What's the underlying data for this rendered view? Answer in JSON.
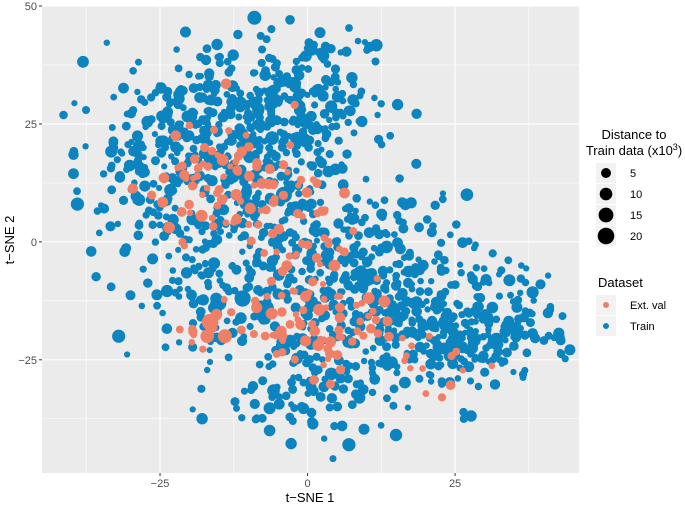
{
  "chart_data": {
    "type": "scatter",
    "xlabel": "t−SNE 1",
    "ylabel": "t−SNE 2",
    "xlim": [
      -45,
      46
    ],
    "ylim": [
      -49,
      50
    ],
    "x_ticks": [
      -25,
      0,
      25
    ],
    "x_tick_labels": [
      "−25",
      "0",
      "25"
    ],
    "y_ticks": [
      -25,
      0,
      25,
      50
    ],
    "y_tick_labels": [
      "−25",
      "0",
      "25",
      "50"
    ],
    "grid": true,
    "panel_background": "#ebebeb",
    "legend_placement": "right",
    "size_legend": {
      "title_line1": "Distance to",
      "title_line2": "Train data (x10",
      "title_sup": "3",
      "title_close": ")",
      "labels": [
        "5",
        "10",
        "15",
        "20"
      ],
      "values": [
        5,
        10,
        15,
        20
      ]
    },
    "color_legend": {
      "title": "Dataset",
      "labels": [
        "Ext. val",
        "Train"
      ],
      "colors": [
        "#f07f67",
        "#0c84bf"
      ]
    },
    "series": [
      {
        "name": "Train",
        "color": "#0c84bf",
        "clusters": [
          {
            "cx": -15,
            "cy": 22,
            "sx": 9,
            "sy": 9,
            "n": 260
          },
          {
            "cx": -3,
            "cy": 30,
            "sx": 9,
            "sy": 8,
            "n": 220
          },
          {
            "cx": -28,
            "cy": 15,
            "sx": 6,
            "sy": 9,
            "n": 90
          },
          {
            "cx": -8,
            "cy": 5,
            "sx": 9,
            "sy": 7,
            "n": 140
          },
          {
            "cx": 3,
            "cy": -10,
            "sx": 8,
            "sy": 8,
            "n": 160
          },
          {
            "cx": 0,
            "cy": -30,
            "sx": 8,
            "sy": 6,
            "n": 110
          },
          {
            "cx": 18,
            "cy": -18,
            "sx": 8,
            "sy": 7,
            "n": 200
          },
          {
            "cx": 32,
            "cy": -18,
            "sx": 7,
            "sy": 7,
            "n": 150
          },
          {
            "cx": 15,
            "cy": -2,
            "sx": 6,
            "sy": 6,
            "n": 70
          },
          {
            "cx": -18,
            "cy": -12,
            "sx": 6,
            "sy": 6,
            "n": 70
          }
        ],
        "big_points": [
          {
            "x": -9,
            "y": 47.5,
            "size": 13
          },
          {
            "x": -11,
            "y": -12,
            "size": 19
          },
          {
            "x": -7,
            "y": -14,
            "size": 16
          },
          {
            "x": -15,
            "y": -13,
            "size": 15
          },
          {
            "x": -4,
            "y": 10,
            "size": 18
          },
          {
            "x": -2,
            "y": 7,
            "size": 16
          },
          {
            "x": -32,
            "y": -20,
            "size": 11
          },
          {
            "x": -39,
            "y": 8,
            "size": 11
          },
          {
            "x": 7,
            "y": -43,
            "size": 11
          },
          {
            "x": 27,
            "y": 10,
            "size": 10
          },
          {
            "x": -6,
            "y": 22,
            "size": 12
          },
          {
            "x": 4,
            "y": -28,
            "size": 10
          }
        ]
      },
      {
        "name": "Ext. val",
        "color": "#f07f67",
        "clusters": [
          {
            "cx": -16,
            "cy": 12,
            "sx": 6,
            "sy": 6,
            "n": 55
          },
          {
            "cx": -4,
            "cy": 5,
            "sx": 6,
            "sy": 10,
            "n": 55
          },
          {
            "cx": 3,
            "cy": -17,
            "sx": 6,
            "sy": 6,
            "n": 70
          },
          {
            "cx": -14,
            "cy": -18,
            "sx": 4,
            "sy": 3,
            "n": 12
          },
          {
            "cx": 22,
            "cy": -25,
            "sx": 5,
            "sy": 4,
            "n": 14
          }
        ],
        "big_points": [
          {
            "x": -16.5,
            "y": -17,
            "size": 20
          },
          {
            "x": -14,
            "y": -20,
            "size": 13
          },
          {
            "x": -17,
            "y": -20,
            "size": 12
          }
        ]
      }
    ]
  }
}
